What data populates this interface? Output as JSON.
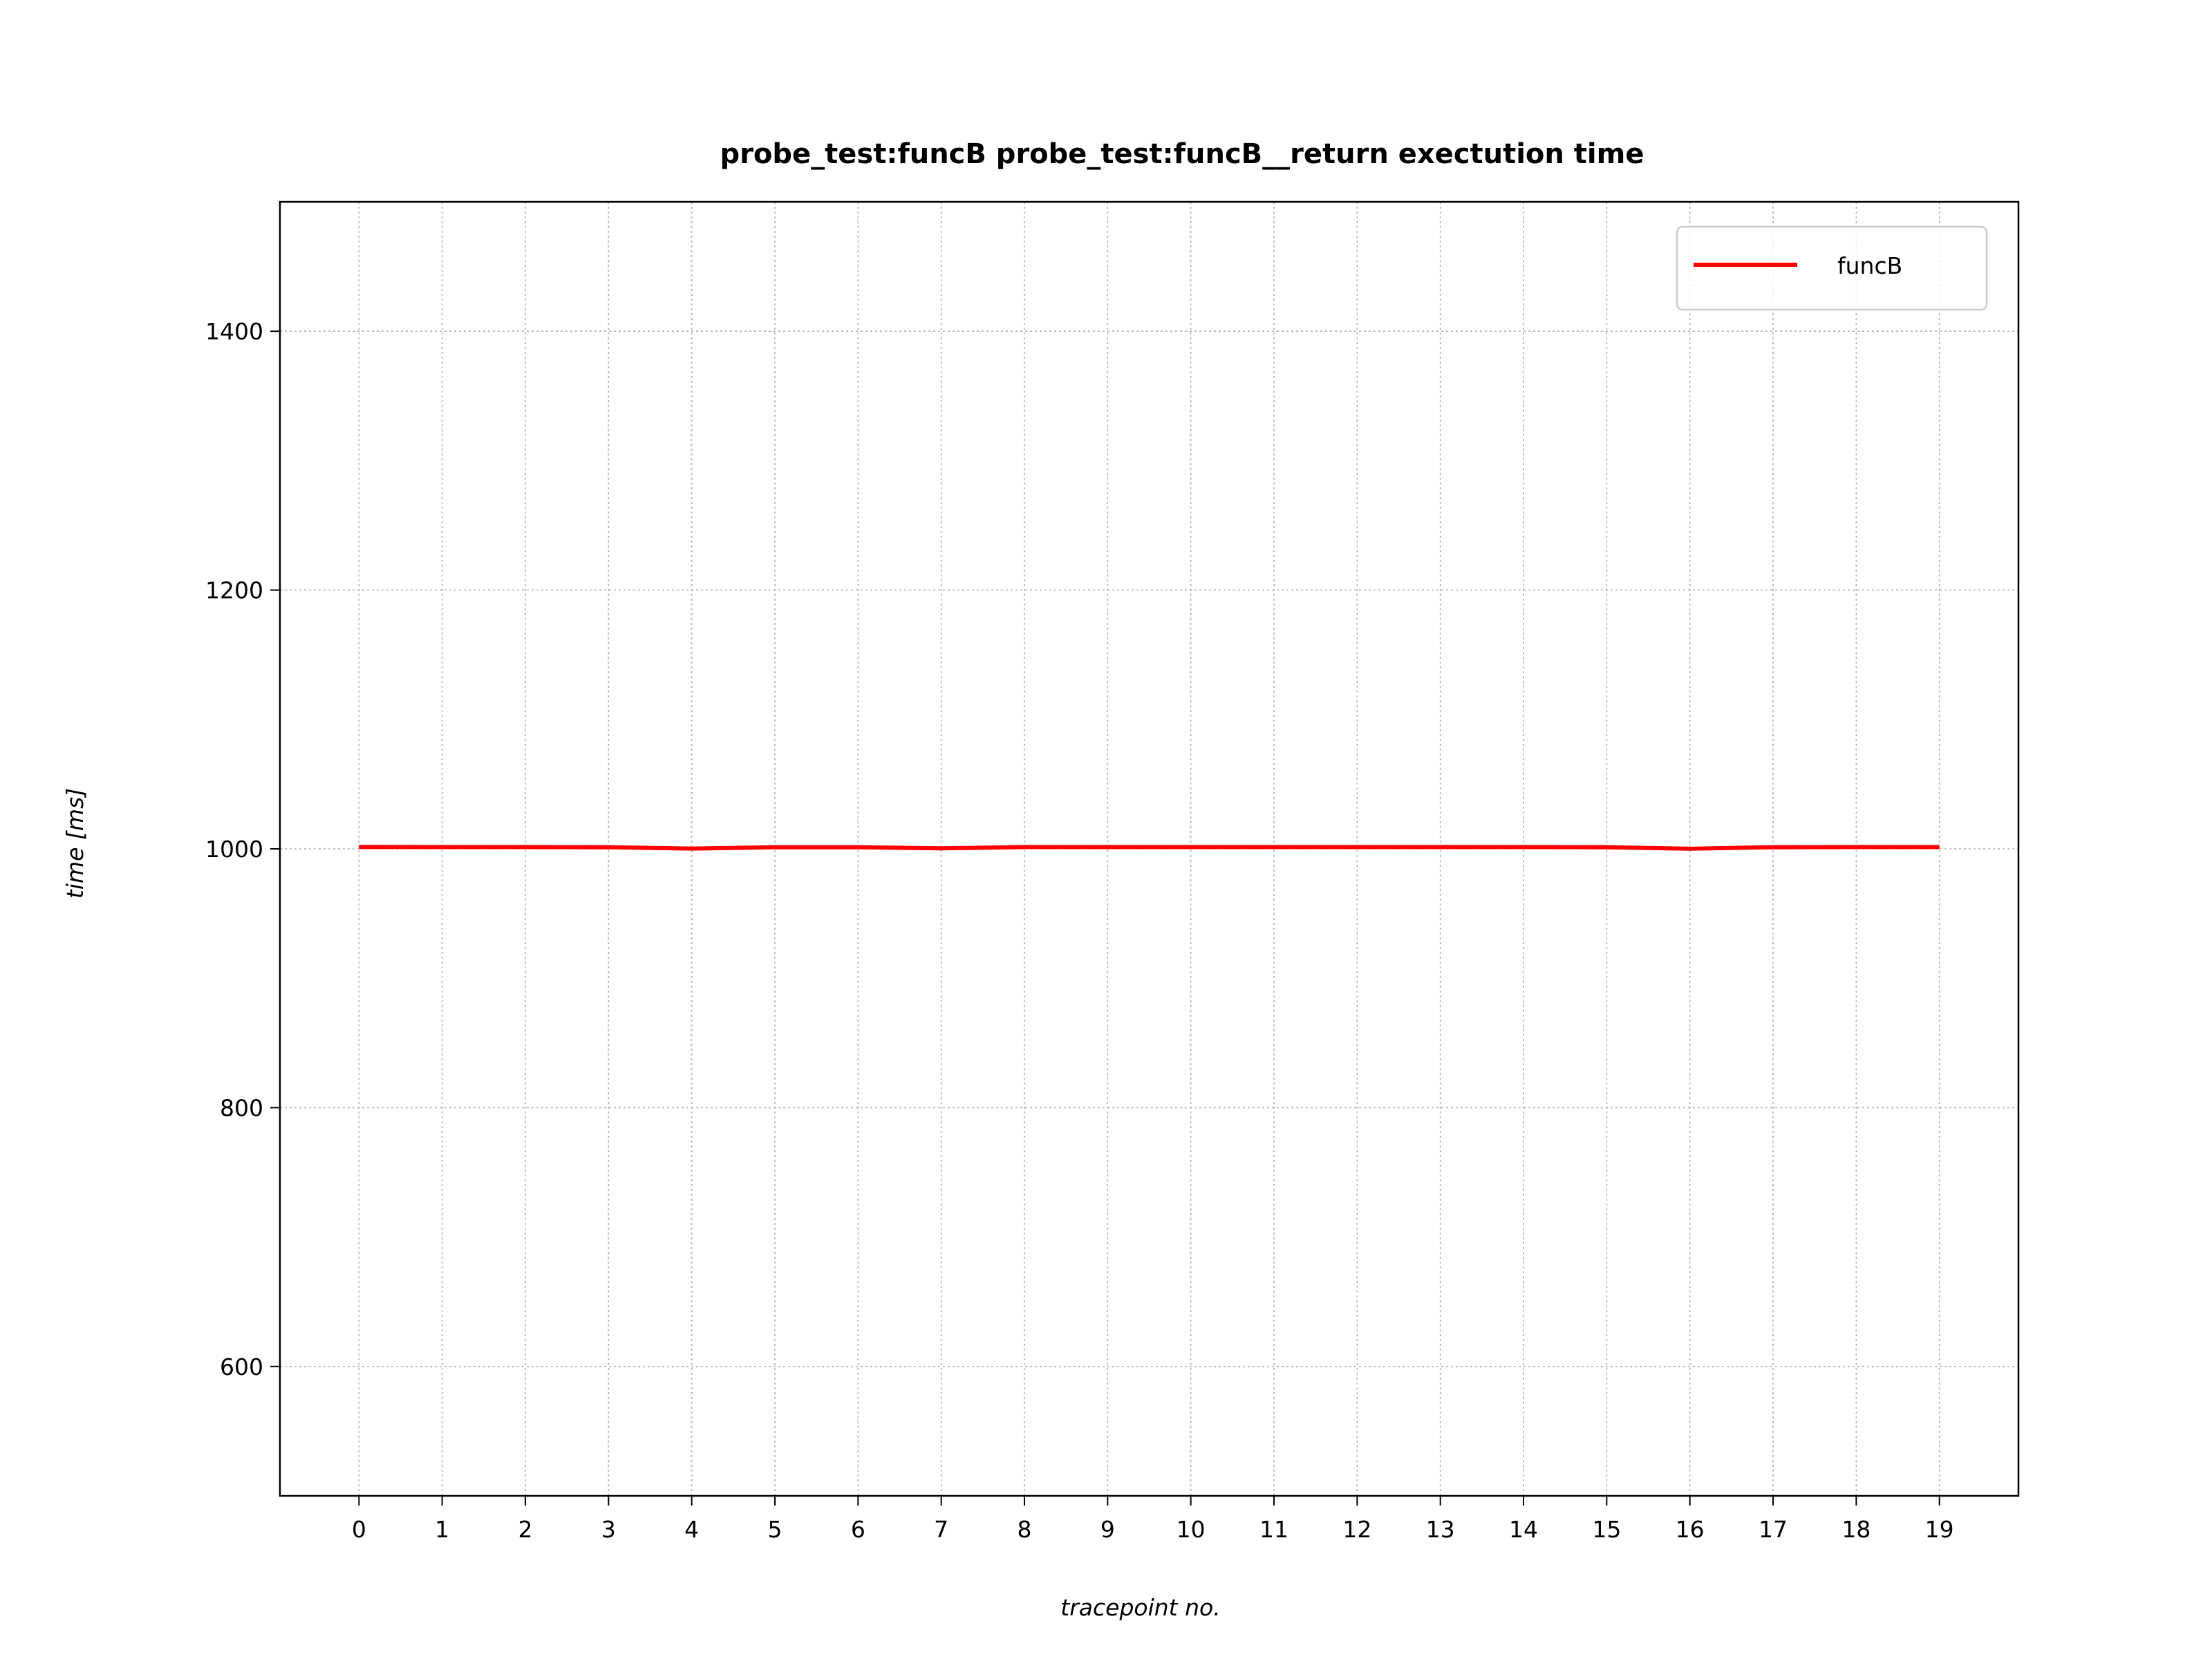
{
  "chart_data": {
    "type": "line",
    "title": "probe_test:funcB probe_test:funcB__return exectution time",
    "xlabel": "tracepoint no.",
    "ylabel": "time [ms]",
    "x": [
      0,
      1,
      2,
      3,
      4,
      5,
      6,
      7,
      8,
      9,
      10,
      11,
      12,
      13,
      14,
      15,
      16,
      17,
      18,
      19
    ],
    "xticks": [
      "0",
      "1",
      "2",
      "3",
      "4",
      "5",
      "6",
      "7",
      "8",
      "9",
      "10",
      "11",
      "12",
      "13",
      "14",
      "15",
      "16",
      "17",
      "18",
      "19"
    ],
    "yticks": [
      600,
      800,
      1000,
      1200,
      1400
    ],
    "xlim": [
      -0.95,
      19.95
    ],
    "ylim": [
      500,
      1500
    ],
    "grid": true,
    "legend_position": "top-right",
    "series": [
      {
        "name": "funcB",
        "color": "#ff0000",
        "values": [
          1001.5,
          1001.4,
          1001.4,
          1001.3,
          1000.2,
          1001.3,
          1001.3,
          1000.4,
          1001.4,
          1001.4,
          1001.4,
          1001.4,
          1001.4,
          1001.4,
          1001.4,
          1001.3,
          1000.1,
          1001.3,
          1001.4,
          1001.4
        ]
      }
    ]
  }
}
